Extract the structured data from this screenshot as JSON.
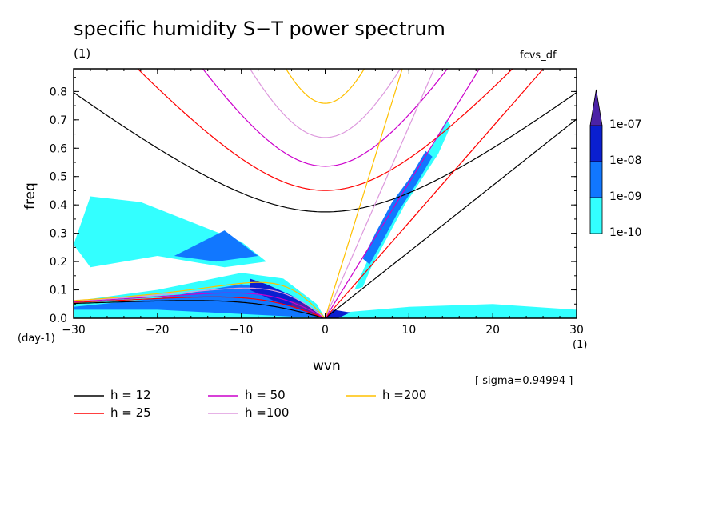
{
  "title": "specific humidity S−T power spectrum",
  "subtitle_units": "(1)",
  "dataset_label": "fcvs_df",
  "sigma_text": "[ sigma=0.94994 ]",
  "colors": {
    "level_1e-10": "#33ffff",
    "level_1e-09": "#1177ff",
    "level_1e-08": "#0a1fd0",
    "level_1e-07": "#4b22a6",
    "h12": "#000000",
    "h25": "#ff0000",
    "h50": "#cc00cc",
    "h100": "#dd99dd",
    "h200": "#ffc000"
  },
  "chart_data": {
    "type": "heatmap",
    "title": "specific humidity S−T power spectrum",
    "xlabel": "wvn",
    "ylabel": "freq",
    "x_unit": "(1)",
    "y_unit": "(day-1)",
    "xlim": [
      -30,
      30
    ],
    "ylim": [
      0,
      0.88
    ],
    "xticks": [
      -30,
      -20,
      -10,
      0,
      10,
      20,
      30
    ],
    "xtick_labels": [
      "−30",
      "−20",
      "−10",
      "0",
      "10",
      "20",
      "30"
    ],
    "yticks": [
      0,
      0.1,
      0.2,
      0.3,
      0.4,
      0.5,
      0.6,
      0.7,
      0.8
    ],
    "ytick_labels": [
      "0.0",
      "0.1",
      "0.2",
      "0.3",
      "0.4",
      "0.5",
      "0.6",
      "0.7",
      "0.8"
    ],
    "colorbar": {
      "levels": [
        "1e-10",
        "1e-09",
        "1e-08",
        "1e-07"
      ],
      "colors": [
        "#33ffff",
        "#1177ff",
        "#0a1fd0",
        "#4b22a6"
      ]
    },
    "dispersion_curves": [
      {
        "name": "h = 12",
        "h": 12,
        "color": "#000000"
      },
      {
        "name": "h = 25",
        "h": 25,
        "color": "#ff0000"
      },
      {
        "name": "h = 50",
        "h": 50,
        "color": "#cc00cc"
      },
      {
        "name": "h =100",
        "h": 100,
        "color": "#dd99dd"
      },
      {
        "name": "h =200",
        "h": 200,
        "color": "#ffc000"
      }
    ],
    "shaded_regions": [
      {
        "level": "1e-10",
        "points": [
          [
            -30,
            0.03
          ],
          [
            -30,
            0.06
          ],
          [
            -20,
            0.1
          ],
          [
            -10,
            0.16
          ],
          [
            -5,
            0.14
          ],
          [
            -1,
            0.05
          ],
          [
            0,
            0.0
          ],
          [
            -30,
            0.0
          ]
        ]
      },
      {
        "level": "1e-10",
        "points": [
          [
            -30,
            0.26
          ],
          [
            -28,
            0.43
          ],
          [
            -22,
            0.41
          ],
          [
            -16,
            0.34
          ],
          [
            -10,
            0.27
          ],
          [
            -7,
            0.2
          ],
          [
            -12,
            0.18
          ],
          [
            -20,
            0.22
          ],
          [
            -28,
            0.18
          ]
        ]
      },
      {
        "level": "1e-10",
        "points": [
          [
            1,
            0.0
          ],
          [
            2,
            0.02
          ],
          [
            10,
            0.04
          ],
          [
            20,
            0.05
          ],
          [
            30,
            0.03
          ],
          [
            30,
            0.0
          ]
        ]
      },
      {
        "level": "1e-10",
        "points": [
          [
            3.5,
            0.1
          ],
          [
            5,
            0.2
          ],
          [
            7,
            0.32
          ],
          [
            9,
            0.43
          ],
          [
            11,
            0.52
          ],
          [
            13,
            0.62
          ],
          [
            14.5,
            0.7
          ],
          [
            15,
            0.68
          ],
          [
            13.5,
            0.58
          ],
          [
            11.5,
            0.49
          ],
          [
            9.5,
            0.4
          ],
          [
            7.5,
            0.29
          ],
          [
            5.5,
            0.18
          ],
          [
            4.5,
            0.11
          ]
        ]
      },
      {
        "level": "1e-09",
        "points": [
          [
            -30,
            0.04
          ],
          [
            -20,
            0.07
          ],
          [
            -10,
            0.12
          ],
          [
            -6,
            0.1
          ],
          [
            -1.5,
            0.03
          ],
          [
            0,
            0.0
          ],
          [
            -20,
            0.03
          ],
          [
            -30,
            0.03
          ]
        ]
      },
      {
        "level": "1e-09",
        "points": [
          [
            -18,
            0.22
          ],
          [
            -14,
            0.28
          ],
          [
            -12,
            0.31
          ],
          [
            -8,
            0.22
          ],
          [
            -13,
            0.2
          ]
        ]
      },
      {
        "level": "1e-09",
        "points": [
          [
            4.5,
            0.21
          ],
          [
            6,
            0.3
          ],
          [
            8,
            0.41
          ],
          [
            10,
            0.49
          ],
          [
            12,
            0.59
          ],
          [
            12.8,
            0.57
          ],
          [
            10.8,
            0.47
          ],
          [
            8.8,
            0.38
          ],
          [
            6.8,
            0.27
          ],
          [
            5.3,
            0.19
          ]
        ]
      },
      {
        "level": "1e-08",
        "points": [
          [
            -9,
            0.14
          ],
          [
            -7,
            0.12
          ],
          [
            -4,
            0.08
          ],
          [
            -1,
            0.025
          ],
          [
            0,
            0.0
          ],
          [
            -2,
            0.02
          ],
          [
            -6,
            0.06
          ],
          [
            -9,
            0.1
          ]
        ]
      },
      {
        "level": "1e-08",
        "points": [
          [
            0,
            0.0
          ],
          [
            1,
            0.03
          ],
          [
            3,
            0.02
          ],
          [
            1.5,
            0.0
          ]
        ]
      },
      {
        "level": "1e-07",
        "points": [
          [
            -4,
            0.06
          ],
          [
            -2.5,
            0.05
          ],
          [
            -0.8,
            0.015
          ],
          [
            -0.3,
            0.0
          ],
          [
            -2,
            0.02
          ],
          [
            -4,
            0.04
          ]
        ]
      }
    ]
  }
}
